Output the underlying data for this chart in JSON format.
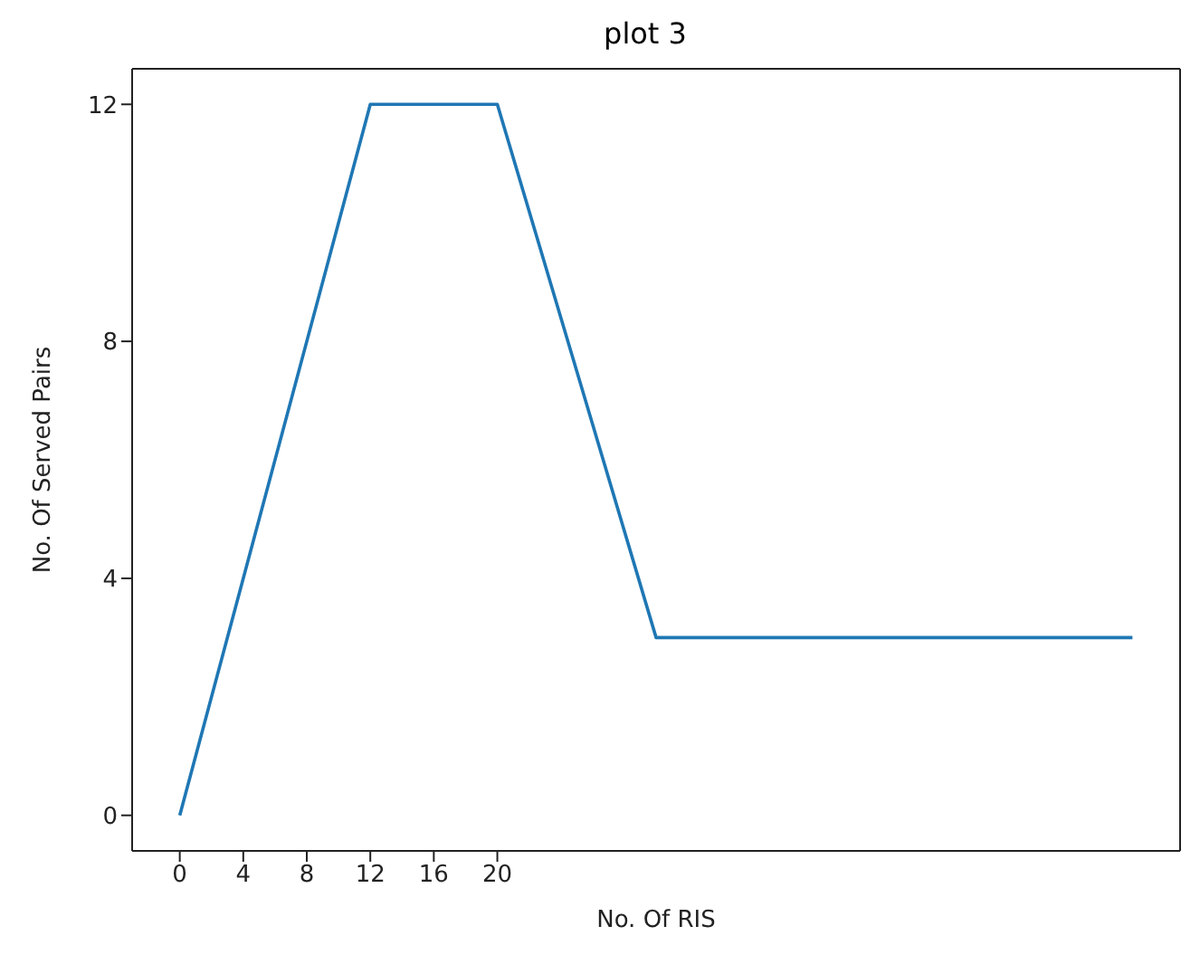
{
  "chart_data": {
    "type": "line",
    "title": "plot 3",
    "xlabel": "No. Of RIS",
    "ylabel": "No. Of Served Pairs",
    "x": [
      0,
      12,
      20,
      30,
      60
    ],
    "series": [
      {
        "color": "#1f77b4",
        "values": [
          0,
          12,
          12,
          3,
          3
        ]
      }
    ],
    "xlim": [
      -3,
      63
    ],
    "xticks": [
      0,
      4,
      8,
      12,
      16,
      20
    ],
    "ylim": [
      -0.6,
      12.6
    ],
    "yticks": [
      0,
      4,
      8,
      12
    ],
    "marker": "none",
    "line_style": "solid"
  }
}
